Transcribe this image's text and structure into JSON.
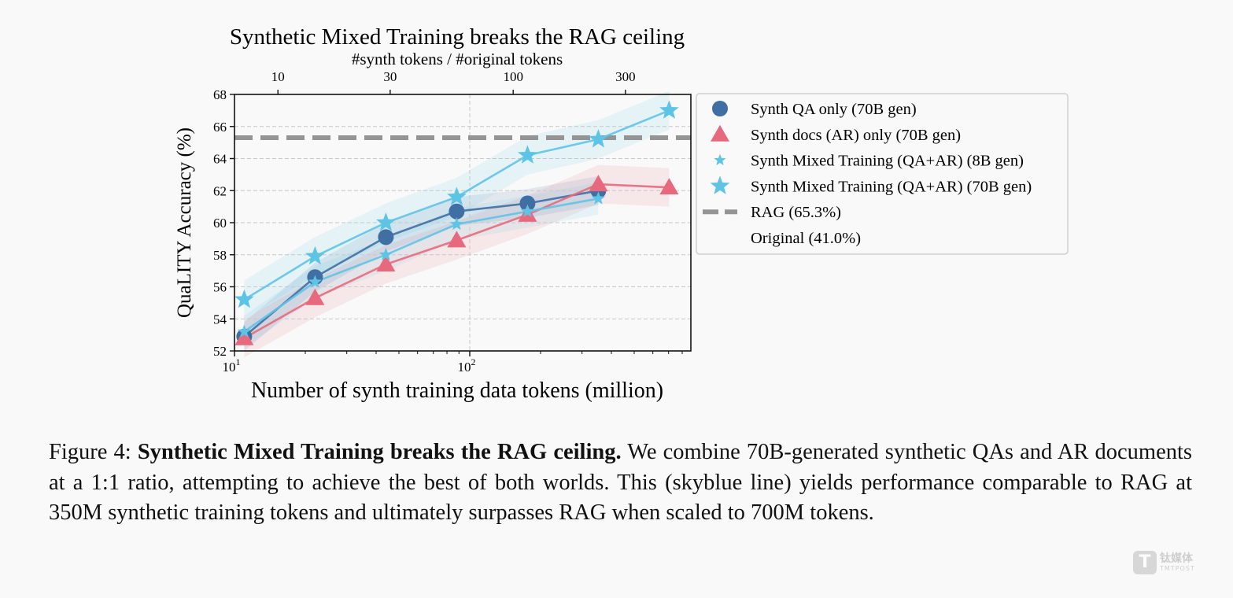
{
  "chart_data": {
    "type": "line",
    "title": "Synthetic Mixed Training breaks the RAG ceiling",
    "xlabel": "Number of synth training data tokens (million)",
    "ylabel": "QuaLITY Accuracy (%)",
    "x_scale": "log",
    "xlim": [
      9.6,
      900
    ],
    "ylim": [
      52,
      68
    ],
    "x_ticks": [
      {
        "value": 10,
        "label": "10",
        "exp": "1"
      },
      {
        "value": 100,
        "label": "10",
        "exp": "2"
      }
    ],
    "y_ticks": [
      52,
      54,
      56,
      58,
      60,
      62,
      64,
      66,
      68
    ],
    "grid": true,
    "top_axis": {
      "label": "#synth tokens / #original tokens",
      "ticks": [
        10,
        30,
        100,
        300
      ],
      "tokens_per_ratio_unit": 1.53
    },
    "series": [
      {
        "name": "Synth QA only (70B gen)",
        "marker": "circle",
        "color": "#3f6fa3",
        "x": [
          11,
          22,
          44,
          88,
          176,
          352
        ],
        "y": [
          52.9,
          56.6,
          59.1,
          60.7,
          61.2,
          62.0
        ],
        "band": 0.9
      },
      {
        "name": "Synth docs (AR) only (70B gen)",
        "marker": "triangle",
        "color": "#e8697d",
        "x": [
          11,
          22,
          44,
          88,
          176,
          352,
          704
        ],
        "y": [
          52.8,
          55.3,
          57.4,
          58.9,
          60.5,
          62.4,
          62.2
        ],
        "band": 1.2
      },
      {
        "name": "Synth Mixed Training (QA+AR) (8B gen)",
        "marker": "small-star",
        "color": "#5ec4e6",
        "x": [
          11,
          22,
          44,
          88,
          176,
          352
        ],
        "y": [
          53.2,
          56.3,
          58.0,
          59.9,
          60.7,
          61.5
        ],
        "band": 1.0
      },
      {
        "name": "Synth Mixed Training (QA+AR) (70B gen)",
        "marker": "star",
        "color": "#5ec4e6",
        "x": [
          11,
          22,
          44,
          88,
          176,
          352,
          704
        ],
        "y": [
          55.2,
          57.9,
          60.0,
          61.6,
          64.2,
          65.2,
          67.0
        ],
        "band": 1.2
      }
    ],
    "reference_lines": [
      {
        "name": "RAG (65.3%)",
        "y": 65.3,
        "color": "#949494",
        "style": "dashed"
      },
      {
        "name": "Original (41.0%)",
        "y": 41.0,
        "color": "#949494",
        "style": "none"
      }
    ],
    "legend_placement": "outside-right"
  },
  "caption": {
    "prefix": "Figure 4: ",
    "bold": "Synthetic Mixed Training breaks the RAG ceiling.",
    "text": " We combine 70B-generated synthetic QAs and AR documents at a 1:1 ratio, attempting to achieve the best of both worlds. This (skyblue line) yields performance comparable to RAG at 350M synthetic training tokens and ultimately surpasses RAG when scaled to 700M tokens."
  },
  "watermark": {
    "cn": "钛媒体",
    "en": "TMTPOST",
    "logo": "T"
  }
}
